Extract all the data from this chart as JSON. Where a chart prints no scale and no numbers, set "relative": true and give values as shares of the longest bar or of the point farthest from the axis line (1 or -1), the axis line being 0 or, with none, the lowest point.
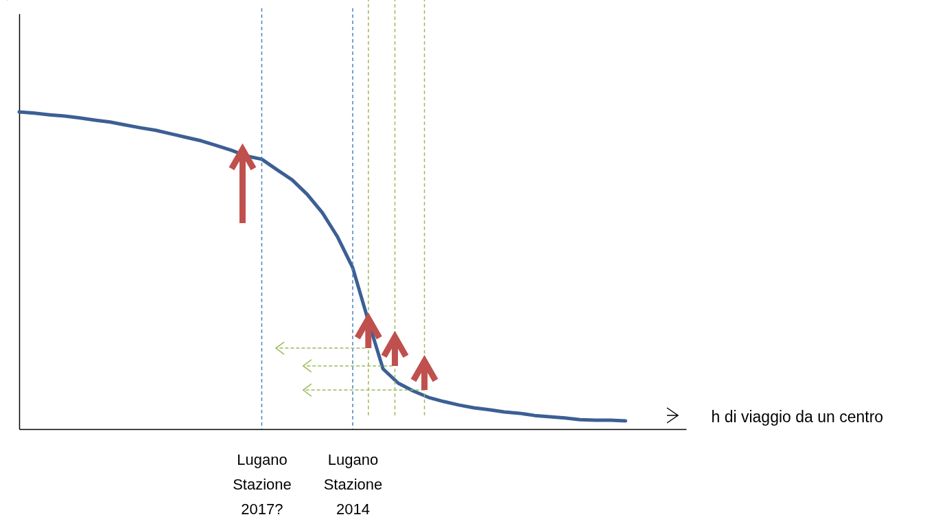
{
  "chart_data": {
    "type": "line",
    "relative": true,
    "xlabel": "h di viaggio da un centro",
    "tick_labels": "x",
    "marker": "none",
    "categories": [
      null,
      null,
      null,
      null,
      null,
      null,
      null,
      null,
      null,
      null,
      null,
      null,
      null,
      null,
      null,
      null,
      "Lugano Stazione 2017?",
      null,
      null,
      null,
      null,
      null,
      "Lugano Stazione 2014",
      null,
      null,
      null,
      null,
      null,
      null,
      null,
      null,
      null,
      null,
      null,
      null,
      null,
      null,
      null,
      null,
      null,
      null
    ],
    "series": [
      {
        "color": "#3c5f94",
        "line_style": "solid",
        "values": [
          1,
          0.996,
          0.991,
          0.987,
          0.981,
          0.974,
          0.968,
          0.959,
          0.95,
          0.942,
          0.931,
          0.92,
          0.909,
          0.894,
          0.879,
          0.861,
          0.851,
          0.818,
          0.786,
          0.74,
          0.682,
          0.606,
          0.509,
          0.346,
          0.19,
          0.145,
          0.12,
          0.1,
          0.087,
          0.076,
          0.067,
          0.061,
          0.054,
          0.05,
          0.043,
          0.039,
          0.035,
          0.03,
          0.028,
          0.028,
          0.026
        ]
      }
    ],
    "ref_lines": [
      {
        "axis": "x",
        "value": "Lugano Stazione 2017?",
        "color": "#4f81bd",
        "line_style": "dashed"
      },
      {
        "axis": "x",
        "value": "Lugano Stazione 2014",
        "color": "#4f81bd",
        "line_style": "dashed"
      }
    ]
  }
}
